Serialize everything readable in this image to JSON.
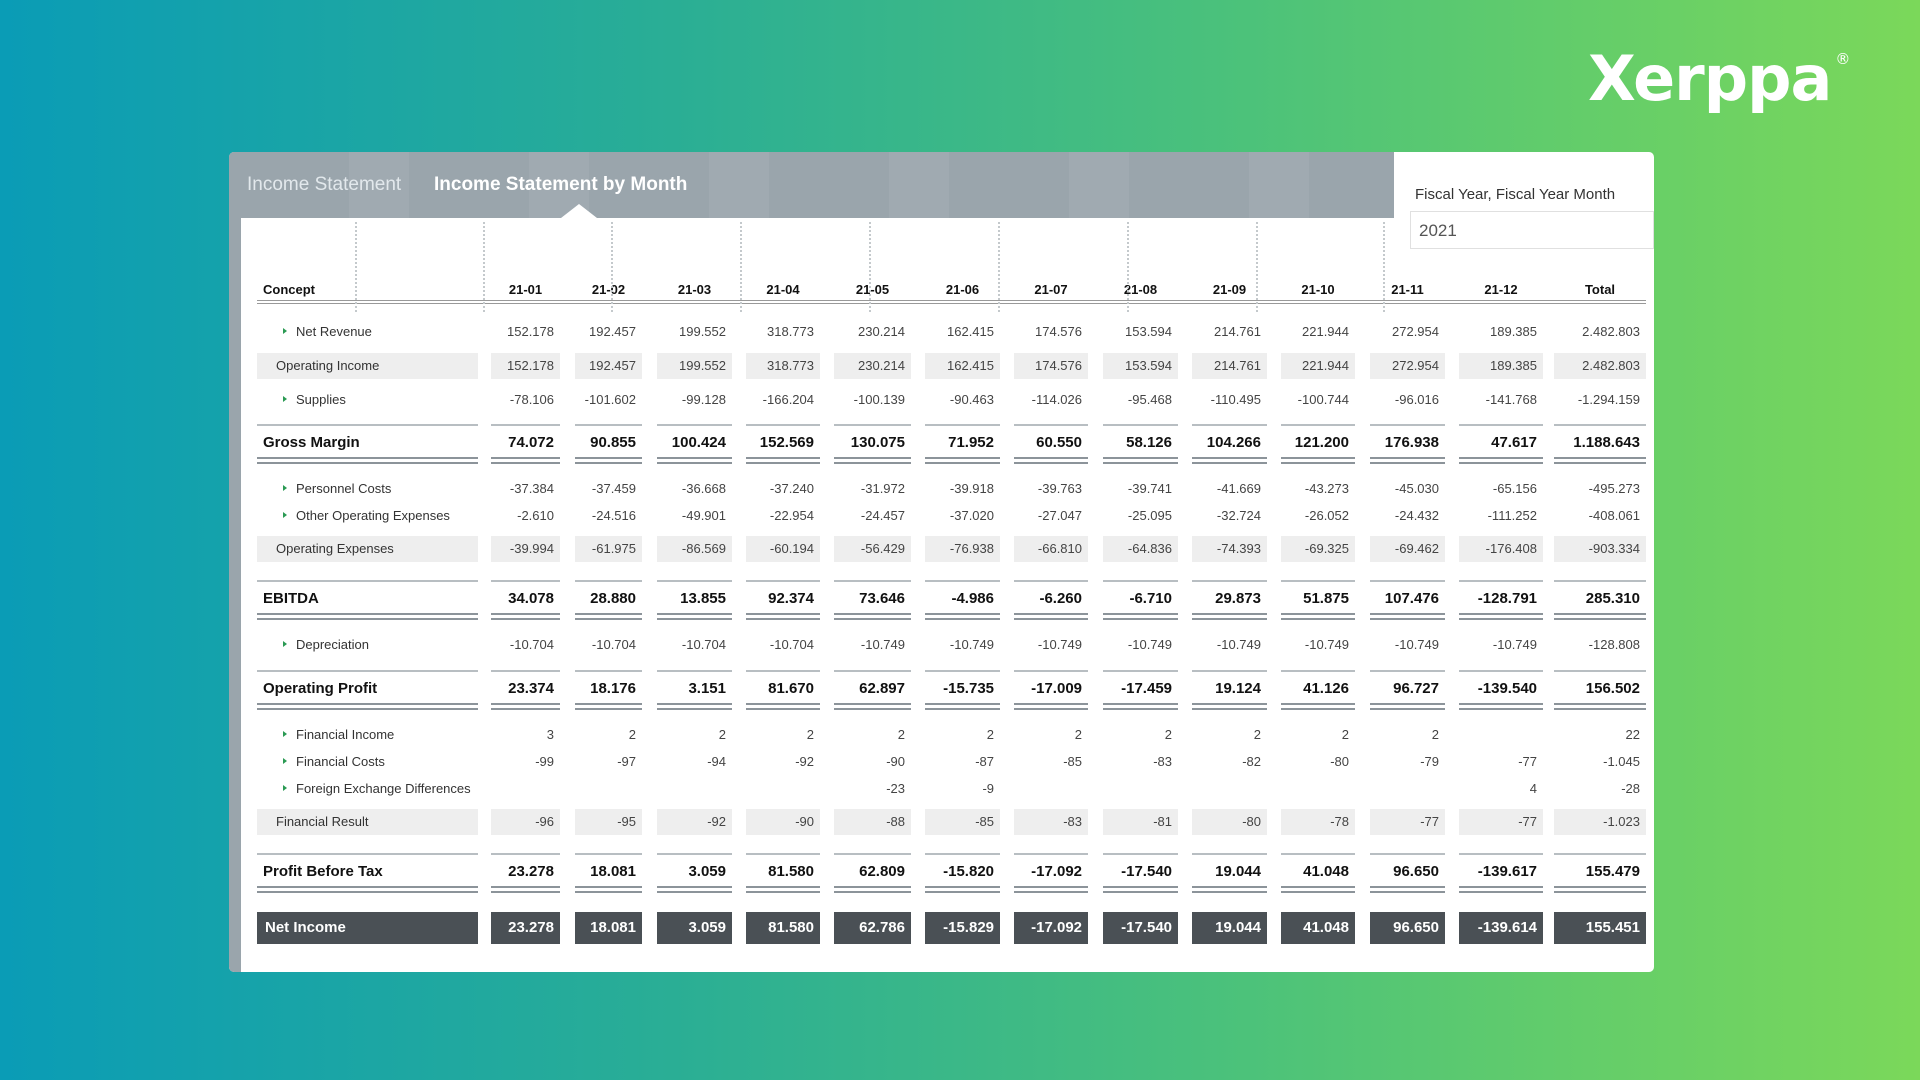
{
  "brand": {
    "logo_text": "Xerppa",
    "logo_mark": "®"
  },
  "tabs": [
    {
      "label": "Income Statement",
      "active": false
    },
    {
      "label": "Income Statement by Month",
      "active": true
    }
  ],
  "filter": {
    "title": "Fiscal Year, Fiscal Year Month",
    "value": "2021"
  },
  "table": {
    "concept_header": "Concept",
    "columns": [
      "21-01",
      "21-02",
      "21-03",
      "21-04",
      "21-05",
      "21-06",
      "21-07",
      "21-08",
      "21-09",
      "21-10",
      "21-11",
      "21-12",
      "Total"
    ],
    "rows": [
      {
        "label": "Net Revenue",
        "style": "expand",
        "values": [
          "152.178",
          "192.457",
          "199.552",
          "318.773",
          "230.214",
          "162.415",
          "174.576",
          "153.594",
          "214.761",
          "221.944",
          "272.954",
          "189.385",
          "2.482.803"
        ]
      },
      {
        "label": "Operating Income",
        "style": "subtotal",
        "values": [
          "152.178",
          "192.457",
          "199.552",
          "318.773",
          "230.214",
          "162.415",
          "174.576",
          "153.594",
          "214.761",
          "221.944",
          "272.954",
          "189.385",
          "2.482.803"
        ]
      },
      {
        "label": "Supplies",
        "style": "expand",
        "values": [
          "-78.106",
          "-101.602",
          "-99.128",
          "-166.204",
          "-100.139",
          "-90.463",
          "-114.026",
          "-95.468",
          "-110.495",
          "-100.744",
          "-96.016",
          "-141.768",
          "-1.294.159"
        ]
      },
      {
        "label": "Gross Margin",
        "style": "total",
        "values": [
          "74.072",
          "90.855",
          "100.424",
          "152.569",
          "130.075",
          "71.952",
          "60.550",
          "58.126",
          "104.266",
          "121.200",
          "176.938",
          "47.617",
          "1.188.643"
        ]
      },
      {
        "label": "Personnel Costs",
        "style": "expand",
        "values": [
          "-37.384",
          "-37.459",
          "-36.668",
          "-37.240",
          "-31.972",
          "-39.918",
          "-39.763",
          "-39.741",
          "-41.669",
          "-43.273",
          "-45.030",
          "-65.156",
          "-495.273"
        ]
      },
      {
        "label": "Other Operating Expenses",
        "style": "expand",
        "values": [
          "-2.610",
          "-24.516",
          "-49.901",
          "-22.954",
          "-24.457",
          "-37.020",
          "-27.047",
          "-25.095",
          "-32.724",
          "-26.052",
          "-24.432",
          "-111.252",
          "-408.061"
        ]
      },
      {
        "label": "Operating Expenses",
        "style": "subtotal",
        "values": [
          "-39.994",
          "-61.975",
          "-86.569",
          "-60.194",
          "-56.429",
          "-76.938",
          "-66.810",
          "-64.836",
          "-74.393",
          "-69.325",
          "-69.462",
          "-176.408",
          "-903.334"
        ]
      },
      {
        "label": "EBITDA",
        "style": "total",
        "values": [
          "34.078",
          "28.880",
          "13.855",
          "92.374",
          "73.646",
          "-4.986",
          "-6.260",
          "-6.710",
          "29.873",
          "51.875",
          "107.476",
          "-128.791",
          "285.310"
        ]
      },
      {
        "label": "Depreciation",
        "style": "expand",
        "values": [
          "-10.704",
          "-10.704",
          "-10.704",
          "-10.704",
          "-10.749",
          "-10.749",
          "-10.749",
          "-10.749",
          "-10.749",
          "-10.749",
          "-10.749",
          "-10.749",
          "-128.808"
        ]
      },
      {
        "label": "Operating Profit",
        "style": "total",
        "values": [
          "23.374",
          "18.176",
          "3.151",
          "81.670",
          "62.897",
          "-15.735",
          "-17.009",
          "-17.459",
          "19.124",
          "41.126",
          "96.727",
          "-139.540",
          "156.502"
        ]
      },
      {
        "label": "Financial Income",
        "style": "expand",
        "values": [
          "3",
          "2",
          "2",
          "2",
          "2",
          "2",
          "2",
          "2",
          "2",
          "2",
          "2",
          "",
          "22"
        ]
      },
      {
        "label": "Financial Costs",
        "style": "expand",
        "values": [
          "-99",
          "-97",
          "-94",
          "-92",
          "-90",
          "-87",
          "-85",
          "-83",
          "-82",
          "-80",
          "-79",
          "-77",
          "-1.045"
        ]
      },
      {
        "label": "Foreign Exchange Differences",
        "style": "expand",
        "values": [
          "",
          "",
          "",
          "",
          "-23",
          "-9",
          "",
          "",
          "",
          "",
          "",
          "4",
          "-28"
        ]
      },
      {
        "label": "Financial Result",
        "style": "subtotal",
        "values": [
          "-96",
          "-95",
          "-92",
          "-90",
          "-88",
          "-85",
          "-83",
          "-81",
          "-80",
          "-78",
          "-77",
          "-77",
          "-1.023"
        ]
      },
      {
        "label": "Profit Before Tax",
        "style": "total",
        "values": [
          "23.278",
          "18.081",
          "3.059",
          "81.580",
          "62.809",
          "-15.820",
          "-17.092",
          "-17.540",
          "19.044",
          "41.048",
          "96.650",
          "-139.617",
          "155.479"
        ]
      },
      {
        "label": "Net Income",
        "style": "net",
        "values": [
          "23.278",
          "18.081",
          "3.059",
          "81.580",
          "62.786",
          "-15.829",
          "-17.092",
          "-17.540",
          "19.044",
          "41.048",
          "96.650",
          "-139.614",
          "155.451"
        ]
      }
    ]
  }
}
